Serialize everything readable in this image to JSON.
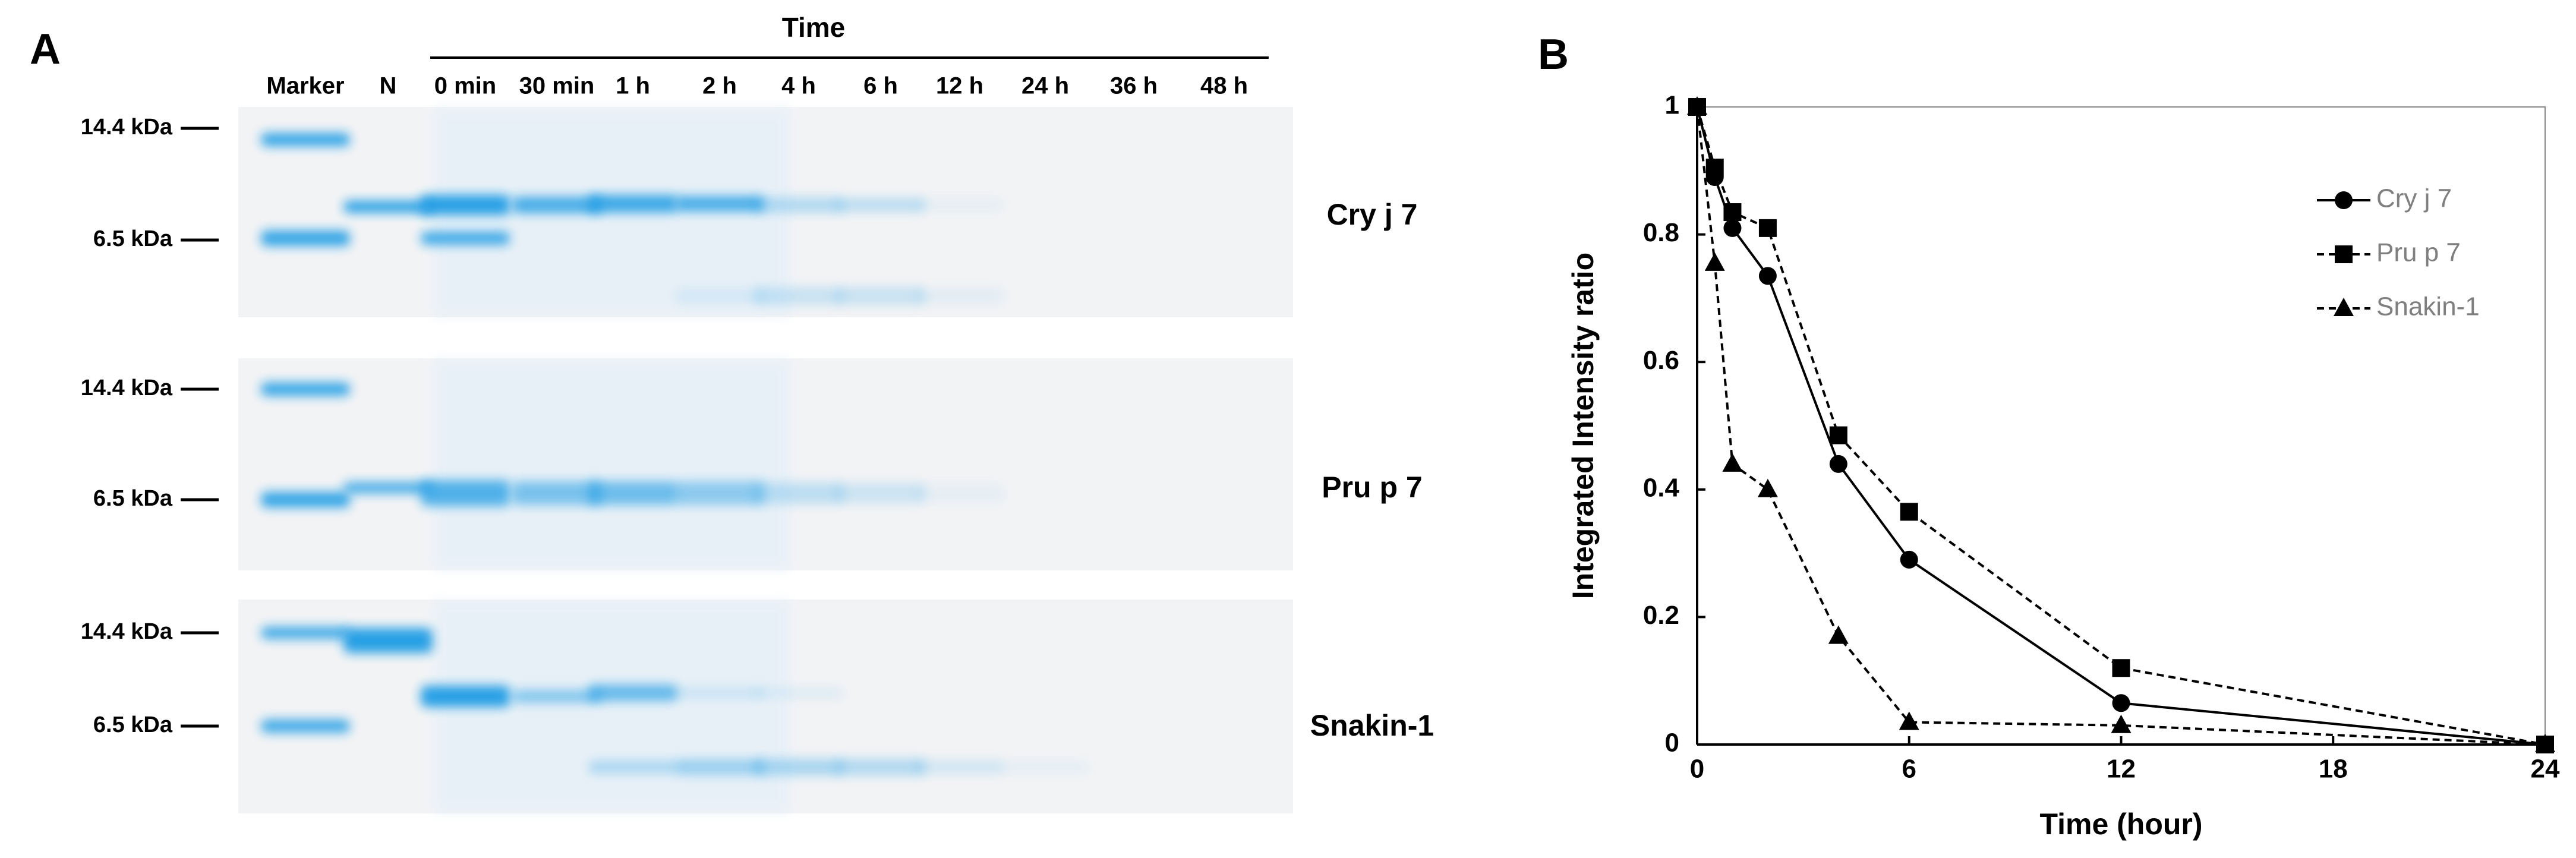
{
  "panel_a": {
    "label": "A",
    "time_label": "Time",
    "lanes": [
      "Marker",
      "N",
      "0 min",
      "30 min",
      "1 h",
      "2 h",
      "4 h",
      "6 h",
      "12 h",
      "24 h",
      "36 h",
      "48 h"
    ],
    "gels": [
      {
        "name": "Cry j 7",
        "markers": [
          "14.4 kDa",
          "6.5 kDa"
        ]
      },
      {
        "name": "Pru p 7",
        "markers": [
          "14.4 kDa",
          "6.5 kDa"
        ]
      },
      {
        "name": "Snakin-1",
        "markers": [
          "14.4 kDa",
          "6.5 kDa"
        ]
      }
    ]
  },
  "chart_data": {
    "type": "line",
    "panel_label": "B",
    "xlabel": "Time (hour)",
    "ylabel": "Integrated Intensity ratio",
    "x": [
      0,
      0.5,
      1,
      2,
      4,
      6,
      12,
      24
    ],
    "series": [
      {
        "name": "Cry j 7",
        "color": "#000000",
        "marker": "circle",
        "dashed": false,
        "values": [
          1,
          0.89,
          0.81,
          0.735,
          0.44,
          0.29,
          0.065,
          0
        ]
      },
      {
        "name": "Pru p 7",
        "color": "#000000",
        "marker": "square",
        "dashed": true,
        "values": [
          1,
          0.905,
          0.835,
          0.81,
          0.485,
          0.365,
          0.12,
          0
        ]
      },
      {
        "name": "Snakin-1",
        "color": "#000000",
        "marker": "triangle",
        "dashed": true,
        "values": [
          1,
          0.755,
          0.44,
          0.4,
          0.17,
          0.035,
          0.03,
          0
        ]
      }
    ],
    "xlim": [
      0,
      24
    ],
    "xticks": [
      0,
      6,
      12,
      18,
      24
    ],
    "ylim": [
      0,
      1
    ],
    "yticks": [
      0,
      0.2,
      0.4,
      0.6,
      0.8,
      1
    ],
    "legend": "upper right"
  }
}
